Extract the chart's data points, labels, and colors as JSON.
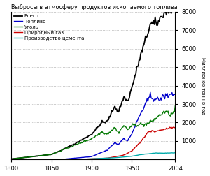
{
  "title": "Выбросы в атмосферу продуктов ископаемого топлива",
  "ylabel": "Миллионов тонн в год",
  "xlim": [
    1800,
    2004
  ],
  "ylim": [
    0,
    8000
  ],
  "yticks": [
    1000,
    2000,
    3000,
    4000,
    5000,
    6000,
    7000,
    8000
  ],
  "xticks": [
    1800,
    1850,
    1900,
    1950,
    2004
  ],
  "legend_labels": [
    "Всего",
    "Топливо",
    "Уголь",
    "Природный газ",
    "Производство цемента"
  ],
  "legend_colors": [
    "#000000",
    "#0000cc",
    "#007700",
    "#cc0000",
    "#00aaaa"
  ],
  "background": "#ffffff",
  "grid_color": "#999999"
}
